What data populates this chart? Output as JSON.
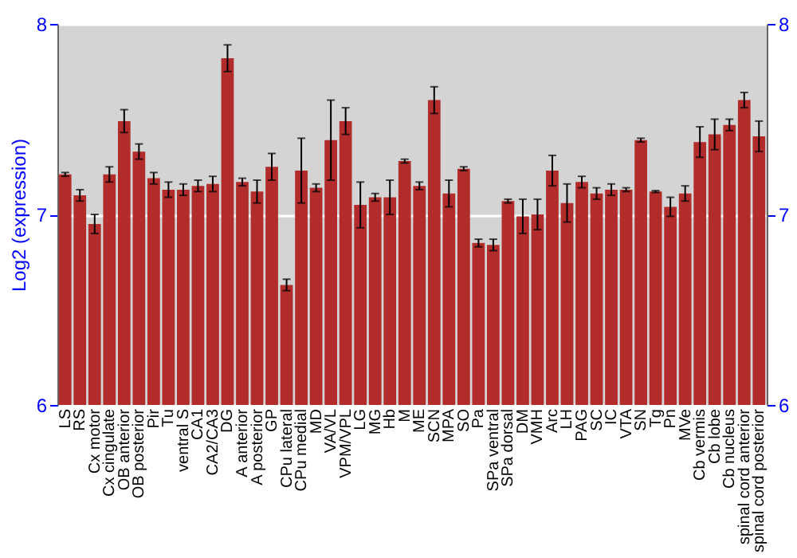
{
  "chart_data": {
    "type": "bar",
    "ylabel": "Log2 (expression)",
    "categories": [
      "LS",
      "RS",
      "Cx motor",
      "Cx cingulate",
      "OB anterior",
      "OB posterior",
      "Pir",
      "Tu",
      "ventral S",
      "CA1",
      "CA2/CA3",
      "DG",
      "A anterior",
      "A posterior",
      "GP",
      "CPu lateral",
      "CPu medial",
      "MD",
      "VA/VL",
      "VPM/VPL",
      "LG",
      "MG",
      "Hb",
      "M",
      "ME",
      "SCN",
      "MPA",
      "SO",
      "Pa",
      "SPa ventral",
      "SPa dorsal",
      "DM",
      "VMH",
      "Arc",
      "LH",
      "PAG",
      "SC",
      "IC",
      "VTA",
      "SN",
      "Tg",
      "Pn",
      "MVe",
      "Cb vermis",
      "Cb lobe",
      "Cb nucleus",
      "spinal cord anterior",
      "spinal cord posterior"
    ],
    "values": [
      7.21,
      7.1,
      6.95,
      7.21,
      7.49,
      7.33,
      7.19,
      7.13,
      7.13,
      7.15,
      7.16,
      7.82,
      7.17,
      7.12,
      7.25,
      6.63,
      7.23,
      7.14,
      7.39,
      7.49,
      7.05,
      7.09,
      7.09,
      7.28,
      7.15,
      7.6,
      7.11,
      7.24,
      6.85,
      6.84,
      7.07,
      6.99,
      7.0,
      7.23,
      7.06,
      7.17,
      7.11,
      7.13,
      7.13,
      7.39,
      7.12,
      7.04,
      7.11,
      7.38,
      7.42,
      7.47,
      7.6,
      7.41
    ],
    "errors": [
      0.01,
      0.03,
      0.05,
      0.04,
      0.06,
      0.04,
      0.03,
      0.04,
      0.03,
      0.03,
      0.04,
      0.07,
      0.02,
      0.06,
      0.07,
      0.03,
      0.17,
      0.02,
      0.21,
      0.07,
      0.12,
      0.02,
      0.09,
      0.01,
      0.02,
      0.07,
      0.07,
      0.01,
      0.02,
      0.03,
      0.01,
      0.09,
      0.08,
      0.08,
      0.1,
      0.03,
      0.03,
      0.03,
      0.01,
      0.01,
      0.005,
      0.05,
      0.04,
      0.08,
      0.08,
      0.03,
      0.04,
      0.08
    ],
    "color": "#b22c2c",
    "ylim": [
      6,
      8
    ],
    "yticks": [
      6,
      7,
      8
    ],
    "y2lim": [
      6,
      8
    ],
    "y2ticks": [
      6,
      7,
      8
    ],
    "grid": "y"
  }
}
